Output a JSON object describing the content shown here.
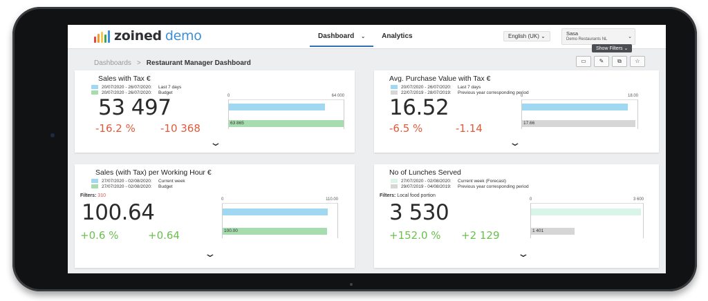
{
  "colors": {
    "logo_bars": [
      "#e8463a",
      "#f39c2d",
      "#f7c948",
      "#3ca55c",
      "#3c8fd6"
    ],
    "blue": "#9fd8f0",
    "green": "#a6dcae",
    "gray": "#d6d6d6",
    "mint": "#d9f5e8"
  },
  "header": {
    "logo_brand": "zoined",
    "logo_suffix": "demo",
    "nav": [
      {
        "label": "Dashboard",
        "chevron": "⌄"
      },
      {
        "label": "Analytics"
      }
    ],
    "language": "English (UK)",
    "user_name": "Sasa",
    "user_org": "Demo Restaurants NL",
    "show_filters": "Show Filters"
  },
  "breadcrumb": {
    "root": "Dashboards",
    "sep": ">",
    "current": "Restaurant Manager Dashboard"
  },
  "tool_icons": [
    "copy-icon",
    "edit-icon",
    "duplicate-icon",
    "star-icon"
  ],
  "cards": [
    {
      "title": "Sales with Tax €",
      "legend": [
        {
          "range": "20/07/2020 - 26/07/2020:",
          "label": "Last 7 days",
          "color": "blue"
        },
        {
          "range": "20/07/2020 - 26/07/2020:",
          "label": "Budget",
          "color": "green"
        }
      ],
      "value": "53 497",
      "delta_pct": "-16.2 %",
      "delta_abs": "-10 368",
      "tone": "neg",
      "axis_min": "0",
      "axis_max": "64 000",
      "bar1": 53497,
      "bar2": 63865,
      "bar2_label": "63 865",
      "scale_max": 64000,
      "bar2_color": "green"
    },
    {
      "title": "Avg. Purchase Value with Tax €",
      "legend": [
        {
          "range": "20/07/2020 - 26/07/2020:",
          "label": "Last 7 days",
          "color": "blue"
        },
        {
          "range": "22/07/2019 - 28/07/2019:",
          "label": "Previous year corresponding period",
          "color": "gray"
        }
      ],
      "value": "16.52",
      "delta_pct": "-6.5 %",
      "delta_abs": "-1.14",
      "tone": "neg",
      "axis_min": "0",
      "axis_max": "18.00",
      "bar1": 16.52,
      "bar2": 17.66,
      "bar2_label": "17.66",
      "scale_max": 18,
      "bar2_color": "gray"
    },
    {
      "title": "Sales (with Tax) per Working Hour €",
      "legend": [
        {
          "range": "27/07/2020 - 02/08/2020:",
          "label": "Current week",
          "color": "blue"
        },
        {
          "range": "27/07/2020 - 02/08/2020:",
          "label": "Budget",
          "color": "green"
        }
      ],
      "filters_label": "Filters:",
      "filters_value": "310",
      "value": "100.64",
      "delta_pct": "+0.6 %",
      "delta_abs": "+0.64",
      "tone": "pos",
      "axis_min": "0",
      "axis_max": "110.00",
      "bar1": 100.64,
      "bar2": 100,
      "bar2_label": "100.00",
      "scale_max": 110,
      "bar2_color": "green"
    },
    {
      "title": "No of Lunches Served",
      "legend": [
        {
          "range": "27/07/2020 - 02/08/2020:",
          "label": "Current week (Forecast)",
          "color": "mint"
        },
        {
          "range": "29/07/2019 - 04/08/2019:",
          "label": "Previous year corresponding period",
          "color": "gray"
        }
      ],
      "filters_label": "Filters:",
      "filters_value": "Local food portion",
      "value": "3 530",
      "delta_pct": "+152.0 %",
      "delta_abs": "+2 129",
      "tone": "pos",
      "axis_min": "0",
      "axis_max": "3 600",
      "bar1": 3530,
      "bar2": 1401,
      "bar2_label": "1 401",
      "scale_max": 3600,
      "bar1_color": "mint",
      "bar2_color": "gray"
    }
  ]
}
